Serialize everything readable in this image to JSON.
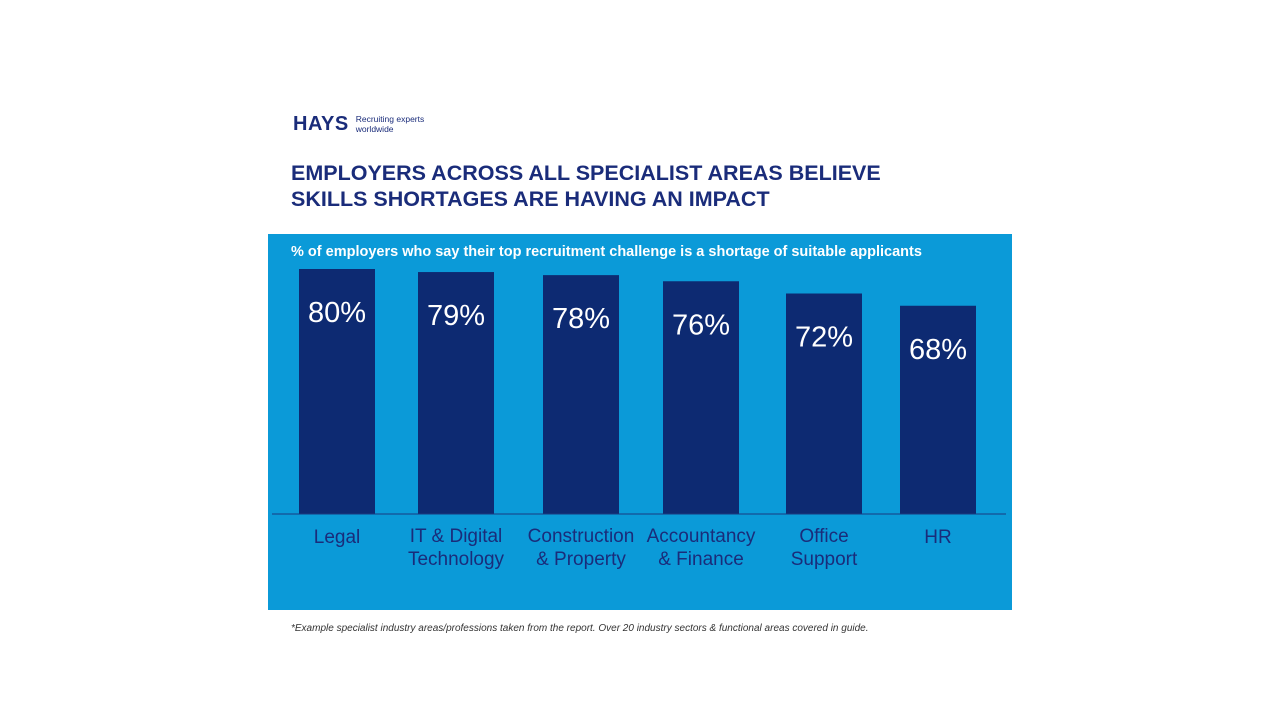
{
  "brand": {
    "name": "HAYS",
    "tagline_line1": "Recruiting experts",
    "tagline_line2": "worldwide"
  },
  "headline": {
    "line1": "EMPLOYERS ACROSS ALL SPECIALIST AREAS BELIEVE",
    "line2": "SKILLS SHORTAGES ARE HAVING AN IMPACT"
  },
  "footnote": "*Example specialist industry areas/professions taken from the report. Over 20 industry sectors & functional areas covered in guide.",
  "colors": {
    "panel": "#0b9ad8",
    "bar": "#0d2a72",
    "category_text": "#1a2c7a",
    "value_text": "#ffffff"
  },
  "chart_data": {
    "type": "bar",
    "title": "% of employers who say their top recruitment challenge is a shortage of suitable applicants",
    "categories": [
      [
        "Legal"
      ],
      [
        "IT & Digital",
        "Technology"
      ],
      [
        "Construction",
        "& Property"
      ],
      [
        "Accountancy",
        "& Finance"
      ],
      [
        "Office",
        "Support"
      ],
      [
        "HR"
      ]
    ],
    "values": [
      80,
      79,
      78,
      76,
      72,
      68
    ],
    "data_labels": [
      "80%",
      "79%",
      "78%",
      "76%",
      "72%",
      "68%"
    ],
    "value_suffix": "%",
    "grid": false,
    "legend": "none"
  }
}
